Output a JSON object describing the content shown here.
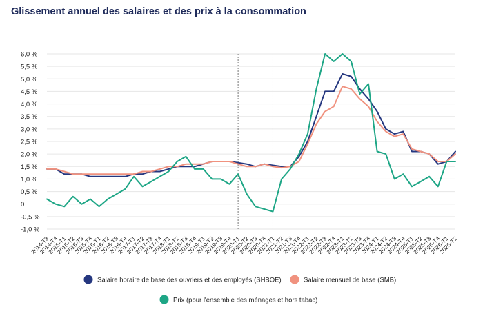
{
  "chart_data": {
    "type": "line",
    "title": "Glissement annuel des salaires et des prix à la consommation",
    "x": [
      "2014-T3",
      "2014-T4",
      "2015-T1",
      "2015-T2",
      "2015-T3",
      "2015-T4",
      "2016-T1",
      "2016-T2",
      "2016-T3",
      "2016-T4",
      "2017-T1",
      "2017-T2",
      "2017-T3",
      "2017-T4",
      "2018-T1",
      "2018-T2",
      "2018-T3",
      "2018-T4",
      "2019-T1",
      "2019-T2",
      "2019-T3",
      "2019-T4",
      "2020-T1",
      "2020-T2",
      "2020-T3",
      "2020-T4",
      "2021-T1",
      "2021-T2",
      "2021-T3",
      "2021-T4",
      "2022-T1",
      "2022-T2",
      "2022-T3",
      "2022-T4",
      "2023-T1",
      "2023-T2",
      "2023-T3",
      "2023-T4",
      "2024-T1",
      "2024-T2",
      "2024-T3",
      "2024-T4",
      "2025-T1",
      "2025-T2",
      "2025-T3",
      "2025-T4",
      "2026-T1",
      "2026-T2"
    ],
    "y_ticks": [
      "6,0 %",
      "5,5 %",
      "5,0 %",
      "4,5 %",
      "4,0 %",
      "3,5 %",
      "3,0 %",
      "2,5 %",
      "2,0 %",
      "1,5 %",
      "1,0 %",
      "0,5 %",
      "0",
      "-0,5 %",
      "-1,0 %"
    ],
    "ylim": [
      -1.0,
      6.0
    ],
    "grid": true,
    "vertical_markers": [
      "2020-T1",
      "2021-T1"
    ],
    "legend_position": "bottom",
    "series": [
      {
        "name": "Salaire horaire de base des ouvriers et des employés (SHBOE)",
        "color": "#25377f",
        "values": [
          1.4,
          1.4,
          1.2,
          1.2,
          1.2,
          1.1,
          1.1,
          1.1,
          1.1,
          1.1,
          1.2,
          1.2,
          1.3,
          1.3,
          1.4,
          1.5,
          1.5,
          1.5,
          1.6,
          1.7,
          1.7,
          1.7,
          1.65,
          1.6,
          1.5,
          1.6,
          1.55,
          1.5,
          1.5,
          1.9,
          2.5,
          3.5,
          4.5,
          4.5,
          5.2,
          5.1,
          4.6,
          4.2,
          3.7,
          3.0,
          2.8,
          2.9,
          2.1,
          2.1,
          2.0,
          1.6,
          1.7,
          2.1
        ]
      },
      {
        "name": "Salaire mensuel de base (SMB)",
        "color": "#f0927f",
        "values": [
          1.4,
          1.4,
          1.3,
          1.2,
          1.2,
          1.2,
          1.2,
          1.2,
          1.2,
          1.2,
          1.2,
          1.3,
          1.3,
          1.4,
          1.5,
          1.5,
          1.6,
          1.6,
          1.6,
          1.7,
          1.7,
          1.7,
          1.6,
          1.5,
          1.5,
          1.6,
          1.5,
          1.45,
          1.5,
          1.7,
          2.4,
          3.2,
          3.7,
          3.9,
          4.7,
          4.6,
          4.2,
          3.9,
          3.3,
          2.9,
          2.7,
          2.8,
          2.2,
          2.1,
          2.0,
          1.7,
          1.7,
          2.0
        ]
      },
      {
        "name": "Prix (pour l'ensemble des ménages et hors tabac)",
        "color": "#1ea686",
        "values": [
          0.2,
          0.0,
          -0.1,
          0.3,
          0.0,
          0.2,
          -0.1,
          0.2,
          0.4,
          0.6,
          1.1,
          0.7,
          0.9,
          1.1,
          1.3,
          1.7,
          1.9,
          1.4,
          1.4,
          1.0,
          1.0,
          0.8,
          1.2,
          0.4,
          -0.1,
          -0.2,
          -0.3,
          1.0,
          1.4,
          2.0,
          2.8,
          4.6,
          6.0,
          5.7,
          6.0,
          5.7,
          4.4,
          4.8,
          2.1,
          2.0,
          1.0,
          1.2,
          0.7,
          0.9,
          1.1,
          0.7,
          1.7,
          1.7
        ]
      }
    ]
  }
}
